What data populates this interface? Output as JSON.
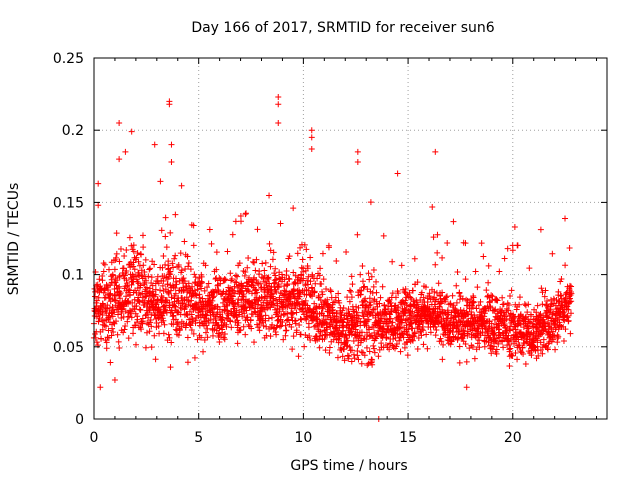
{
  "chart_data": {
    "type": "scatter",
    "title": "Day 166 of 2017, SRMTID for receiver sun6",
    "xlabel": "GPS time / hours",
    "ylabel": "SRMTID / TECUs",
    "xlim": [
      0,
      24.5
    ],
    "ylim": [
      0,
      0.25
    ],
    "x_ticks": [
      0,
      5,
      10,
      15,
      20
    ],
    "x_tick_labels": [
      "0",
      "5",
      "10",
      "15",
      "20"
    ],
    "y_ticks": [
      0,
      0.05,
      0.1,
      0.15,
      0.2,
      0.25
    ],
    "y_tick_labels": [
      "0",
      "0.05",
      "0.1",
      "0.15",
      "0.2",
      "0.25"
    ],
    "grid": true,
    "marker": "plus",
    "series": [
      {
        "name": "SRMTID",
        "color": "#ff0000",
        "density_profile": {
          "description": "approximate per-hour trend of dense scatter (mean, spread)",
          "hours": [
            0,
            1,
            2,
            3,
            4,
            5,
            6,
            7,
            8,
            9,
            10,
            11,
            12,
            13,
            14,
            15,
            16,
            17,
            18,
            19,
            20,
            21,
            22,
            22.8
          ],
          "mean": [
            0.075,
            0.085,
            0.09,
            0.08,
            0.09,
            0.075,
            0.078,
            0.082,
            0.085,
            0.08,
            0.085,
            0.07,
            0.06,
            0.07,
            0.065,
            0.07,
            0.075,
            0.07,
            0.065,
            0.068,
            0.062,
            0.06,
            0.068,
            0.085
          ],
          "spread": [
            0.025,
            0.03,
            0.03,
            0.03,
            0.035,
            0.025,
            0.022,
            0.022,
            0.03,
            0.025,
            0.035,
            0.02,
            0.02,
            0.03,
            0.02,
            0.02,
            0.02,
            0.02,
            0.02,
            0.02,
            0.02,
            0.02,
            0.02,
            0.02
          ]
        },
        "notable_points": [
          {
            "x": 0.2,
            "y": 0.163
          },
          {
            "x": 0.2,
            "y": 0.148
          },
          {
            "x": 1.2,
            "y": 0.205
          },
          {
            "x": 1.2,
            "y": 0.18
          },
          {
            "x": 1.8,
            "y": 0.199
          },
          {
            "x": 1.5,
            "y": 0.185
          },
          {
            "x": 2.9,
            "y": 0.19
          },
          {
            "x": 3.6,
            "y": 0.22
          },
          {
            "x": 3.6,
            "y": 0.218
          },
          {
            "x": 3.7,
            "y": 0.19
          },
          {
            "x": 3.7,
            "y": 0.178
          },
          {
            "x": 8.8,
            "y": 0.223
          },
          {
            "x": 8.8,
            "y": 0.218
          },
          {
            "x": 8.8,
            "y": 0.205
          },
          {
            "x": 10.4,
            "y": 0.2
          },
          {
            "x": 10.4,
            "y": 0.195
          },
          {
            "x": 10.4,
            "y": 0.187
          },
          {
            "x": 12.6,
            "y": 0.185
          },
          {
            "x": 12.6,
            "y": 0.178
          },
          {
            "x": 16.3,
            "y": 0.185
          },
          {
            "x": 14.5,
            "y": 0.17
          },
          {
            "x": 20.1,
            "y": 0.133
          },
          {
            "x": 13.6,
            "y": 0.0
          },
          {
            "x": 0.3,
            "y": 0.022
          },
          {
            "x": 17.8,
            "y": 0.022
          },
          {
            "x": 1.0,
            "y": 0.027
          }
        ]
      }
    ]
  }
}
